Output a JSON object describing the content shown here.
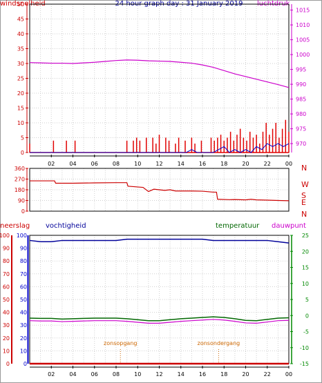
{
  "header": {
    "title": "24 hour graph day : 31 January 2019",
    "left_label": "windsnelheid",
    "right_label": "luchtdruk"
  },
  "mid_header": {
    "neerslag": "neerslag",
    "vochtigheid": "vochtigheid",
    "temperatuur": "temperatuur",
    "dauwpunt": "dauwpunt"
  },
  "colors": {
    "wind": "#e00000",
    "gust": "#0000cc",
    "pressure": "#cc00cc",
    "direction": "#cc0000",
    "humidity": "#000099",
    "temperature": "#006600",
    "dewpoint": "#cc00cc",
    "rain": "#cc0000",
    "events": "#cc6600",
    "title": "#000099",
    "left_axis": "#cc0000",
    "humidity_axis": "#0000cc",
    "temp_axis": "#008800"
  },
  "chart_data": [
    {
      "type": "line",
      "name": "wind-pressure",
      "x_ticks": [
        "02",
        "04",
        "06",
        "08",
        "10",
        "12",
        "14",
        "16",
        "18",
        "20",
        "22",
        "00"
      ],
      "xlim": [
        0,
        24
      ],
      "wind_axis": {
        "ticks": [
          0,
          5,
          10,
          15,
          20,
          25,
          30,
          35,
          40,
          45,
          50
        ],
        "ylim": [
          0,
          50
        ]
      },
      "pressure_axis": {
        "ticks": [
          970,
          975,
          980,
          985,
          990,
          995,
          1000,
          1005,
          1010,
          1015
        ],
        "ylim": [
          967,
          1017
        ]
      },
      "series": [
        {
          "role": "windsnelheid",
          "x": [
            0,
            0.3,
            0.6,
            1.0,
            1.4,
            1.8,
            2.2,
            2.6,
            3.0,
            3.4,
            3.8,
            4.2,
            4.6,
            5.0,
            5.4,
            5.8,
            6.2,
            6.6,
            7.0,
            7.4,
            7.8,
            8.2,
            8.6,
            9.0,
            9.3,
            9.6,
            9.9,
            10.2,
            10.5,
            10.8,
            11.1,
            11.4,
            11.7,
            12.0,
            12.3,
            12.6,
            12.9,
            13.2,
            13.5,
            13.8,
            14.1,
            14.4,
            14.7,
            15.0,
            15.3,
            15.6,
            15.9,
            16.2,
            16.5,
            16.8,
            17.1,
            17.4,
            17.7,
            18.0,
            18.3,
            18.6,
            18.9,
            19.2,
            19.5,
            19.8,
            20.1,
            20.4,
            20.7,
            21.0,
            21.3,
            21.6,
            21.9,
            22.2,
            22.5,
            22.8,
            23.1,
            23.4,
            23.7,
            24.0
          ],
          "y": [
            3,
            0,
            0,
            0,
            0,
            0,
            4,
            0,
            0,
            4,
            0,
            4,
            0,
            0,
            0,
            0,
            0,
            0,
            0,
            0,
            0,
            0,
            0,
            4,
            0,
            4,
            5,
            4,
            0,
            5,
            0,
            5,
            3,
            6,
            0,
            5,
            4,
            0,
            3,
            5,
            0,
            4,
            0,
            5,
            3,
            0,
            4,
            0,
            0,
            5,
            4,
            5,
            6,
            4,
            5,
            7,
            4,
            6,
            8,
            5,
            4,
            7,
            5,
            6,
            3,
            7,
            10,
            6,
            8,
            10,
            5,
            8,
            11,
            7
          ]
        },
        {
          "role": "gust",
          "x": [
            0,
            14.5,
            15,
            15.5,
            16,
            17,
            17.5,
            18,
            18.5,
            19,
            19.5,
            20,
            20.5,
            21,
            21.5,
            22,
            22.5,
            23,
            23.5,
            24
          ],
          "y": [
            0,
            0,
            1,
            0,
            0,
            0,
            1,
            2,
            0,
            1,
            0,
            1,
            0,
            2,
            1,
            3,
            2,
            3,
            2,
            3
          ]
        },
        {
          "role": "luchtdruk",
          "x": [
            0,
            1,
            2,
            3,
            4,
            5,
            6,
            7,
            8,
            9,
            10,
            11,
            12,
            13,
            14,
            15,
            16,
            17,
            18,
            19,
            20,
            21,
            22,
            23,
            24
          ],
          "y": [
            997.3,
            997.2,
            997.1,
            997.1,
            997.0,
            997.2,
            997.4,
            997.7,
            998.0,
            998.2,
            998.1,
            997.9,
            997.8,
            997.7,
            997.4,
            997.1,
            996.5,
            995.7,
            994.6,
            993.5,
            992.6,
            991.7,
            990.8,
            989.9,
            988.9
          ]
        }
      ]
    },
    {
      "type": "line",
      "name": "wind-direction",
      "x_ticks": [
        "02",
        "04",
        "06",
        "08",
        "10",
        "12",
        "14",
        "16",
        "18",
        "20",
        "22",
        "00"
      ],
      "xlim": [
        0,
        24
      ],
      "ylim": [
        0,
        360
      ],
      "y_ticks": [
        0,
        90,
        180,
        270,
        360
      ],
      "compass": [
        "N",
        "W",
        "S",
        "E",
        "N"
      ],
      "series": [
        {
          "role": "windrichting",
          "x": [
            0,
            2.3,
            2.4,
            4.0,
            6.0,
            8.0,
            9.0,
            9.1,
            10.5,
            11.0,
            11.5,
            12.0,
            12.5,
            13.0,
            13.5,
            14.0,
            15.0,
            16.0,
            17.0,
            17.3,
            17.4,
            18.5,
            19.0,
            20.0,
            20.5,
            21.0,
            22.0,
            23.0,
            24.0
          ],
          "y": [
            255,
            255,
            235,
            235,
            238,
            240,
            240,
            210,
            200,
            165,
            185,
            180,
            175,
            180,
            170,
            170,
            170,
            168,
            160,
            160,
            100,
            97,
            98,
            95,
            100,
            95,
            93,
            90,
            88
          ]
        }
      ]
    },
    {
      "type": "line",
      "name": "humidity-temperature",
      "x_ticks": [
        "02",
        "04",
        "06",
        "08",
        "10",
        "12",
        "14",
        "16",
        "18",
        "20",
        "22",
        "00"
      ],
      "xlim": [
        0,
        24
      ],
      "humidity_axis": {
        "ticks": [
          0,
          10,
          20,
          30,
          40,
          50,
          60,
          70,
          80,
          90,
          100
        ],
        "ylim": [
          0,
          100
        ]
      },
      "temperature_axis": {
        "ticks": [
          -15,
          -10,
          -5,
          0,
          5,
          10,
          15,
          20,
          25
        ],
        "ylim": [
          -15,
          25
        ]
      },
      "annotations": [
        "zonsopgang",
        "zonsondergang"
      ],
      "annotation_x": [
        8.4,
        17.5
      ],
      "series": [
        {
          "role": "vochtigheid",
          "x": [
            0,
            1,
            2,
            3,
            4,
            5,
            6,
            7,
            8,
            9,
            10,
            11,
            12,
            13,
            14,
            15,
            16,
            17,
            18,
            19,
            20,
            21,
            22,
            23,
            24
          ],
          "y": [
            96,
            95,
            95,
            96,
            96,
            96,
            96,
            96,
            96,
            97,
            97,
            97,
            97,
            97,
            97,
            97,
            97,
            96,
            96,
            96,
            96,
            96,
            96,
            95,
            94
          ]
        },
        {
          "role": "temperatuur",
          "x": [
            0,
            1,
            2,
            3,
            4,
            5,
            6,
            7,
            8,
            9,
            10,
            11,
            12,
            13,
            14,
            15,
            16,
            17,
            18,
            19,
            20,
            21,
            22,
            23,
            24
          ],
          "y": [
            -0.8,
            -0.9,
            -0.9,
            -1.1,
            -1.0,
            -0.9,
            -0.8,
            -0.8,
            -0.8,
            -1.0,
            -1.3,
            -1.6,
            -1.6,
            -1.3,
            -1.0,
            -0.8,
            -0.6,
            -0.4,
            -0.6,
            -1.0,
            -1.5,
            -1.6,
            -1.2,
            -0.8,
            -0.7
          ]
        },
        {
          "role": "dauwpunt",
          "x": [
            0,
            1,
            2,
            3,
            4,
            5,
            6,
            7,
            8,
            9,
            10,
            11,
            12,
            13,
            14,
            15,
            16,
            17,
            18,
            19,
            20,
            21,
            22,
            23,
            24
          ],
          "y": [
            -1.6,
            -1.7,
            -1.7,
            -1.9,
            -1.8,
            -1.7,
            -1.6,
            -1.6,
            -1.6,
            -1.8,
            -2.1,
            -2.4,
            -2.4,
            -2.1,
            -1.8,
            -1.6,
            -1.4,
            -1.2,
            -1.4,
            -1.8,
            -2.3,
            -2.4,
            -2.0,
            -1.6,
            -1.5
          ]
        },
        {
          "role": "neerslag",
          "x": [
            0,
            24
          ],
          "y": [
            0,
            0
          ]
        }
      ]
    }
  ]
}
